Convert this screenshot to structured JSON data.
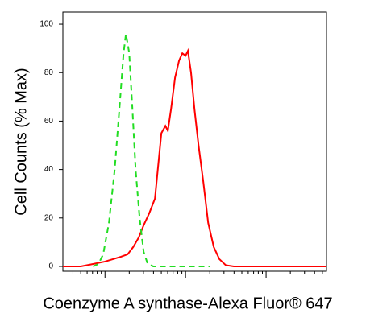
{
  "chart_data": {
    "type": "line",
    "x_label": "Coenzyme A synthase-Alexa Fluor® 647",
    "y_label": "Cell Counts (% Max)",
    "x_scale": "log",
    "xlim": [
      3,
      5623
    ],
    "ylim": [
      -2,
      105
    ],
    "yticks": [
      0,
      20,
      40,
      60,
      80,
      100
    ],
    "xticks": [
      4,
      5,
      6,
      7,
      8,
      9,
      10,
      20,
      30,
      40,
      50,
      60,
      70,
      80,
      90,
      100,
      200,
      300,
      400,
      500,
      600,
      700,
      800,
      900,
      1000,
      2000,
      3000,
      4000,
      5000
    ],
    "series": [
      {
        "color": "#ff0000",
        "dash": false,
        "x": [
          3,
          5,
          7.1,
          10,
          12.6,
          15.8,
          19.1,
          22.4,
          26.3,
          30.2,
          35.5,
          41.7,
          46.8,
          50.1,
          56.2,
          60.3,
          66.1,
          74.1,
          83.2,
          91.2,
          100,
          107,
          117,
          129,
          145,
          166,
          191,
          224,
          263,
          316,
          398,
          1585,
          5623
        ],
        "values": [
          0,
          0,
          1,
          2,
          3,
          4,
          5,
          8,
          12,
          17,
          22,
          28,
          45,
          55,
          58,
          56,
          65,
          78,
          85,
          88,
          87,
          89,
          80,
          65,
          50,
          35,
          18,
          8,
          3,
          0.5,
          0,
          0,
          0
        ]
      },
      {
        "color": "#22dd22",
        "dash": true,
        "x": [
          7.1,
          8.3,
          9.5,
          11.2,
          13.2,
          15.1,
          17,
          18.2,
          20,
          21.9,
          24,
          26.9,
          30.2,
          33.9,
          39.8,
          200
        ],
        "values": [
          0,
          1,
          5,
          18,
          40,
          65,
          88,
          96,
          88,
          65,
          40,
          20,
          6,
          1,
          0,
          0
        ]
      }
    ]
  }
}
